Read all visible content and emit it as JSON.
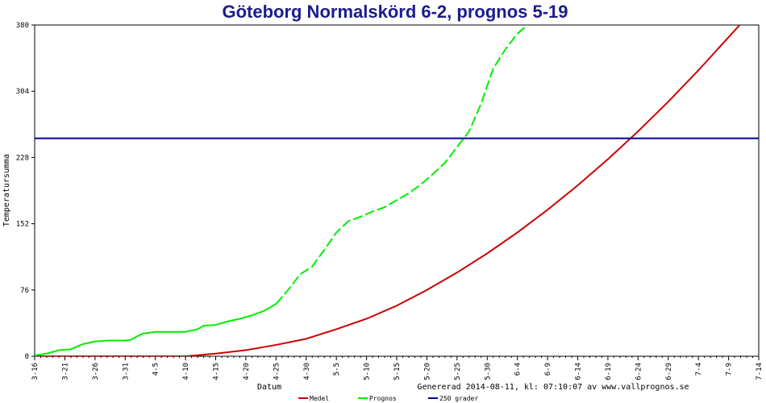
{
  "chart_data": {
    "type": "line",
    "title": "Göteborg Normalskörd 6-2, prognos 5-19",
    "xlabel": "Datum",
    "ylabel": "Temperatursumma",
    "footer": "Genererad 2014-08-11, kl: 07:10:07 av www.vallprognos.se",
    "x_tick_labels": [
      "3-16",
      "3-21",
      "3-26",
      "3-31",
      "4-5",
      "4-10",
      "4-15",
      "4-20",
      "4-25",
      "4-30",
      "5-5",
      "5-10",
      "5-15",
      "5-20",
      "5-25",
      "5-30",
      "6-4",
      "6-9",
      "6-14",
      "6-19",
      "6-24",
      "6-29",
      "7-4",
      "7-9",
      "7-14"
    ],
    "x_start_label": "3-16",
    "x_step_days": 5,
    "y_ticks": [
      0,
      76,
      152,
      228,
      304,
      380
    ],
    "ylim": [
      0,
      380
    ],
    "xlim_days": [
      0,
      120
    ],
    "grid": false,
    "legend_position": "bottom",
    "series": [
      {
        "name": "Medel",
        "color": "#cc0000",
        "points": [
          [
            0,
            0
          ],
          [
            15,
            0
          ],
          [
            25,
            0
          ],
          [
            30,
            3
          ],
          [
            35,
            7
          ],
          [
            40,
            13
          ],
          [
            45,
            20
          ],
          [
            50,
            31
          ],
          [
            55,
            43
          ],
          [
            60,
            58
          ],
          [
            65,
            76
          ],
          [
            70,
            96
          ],
          [
            75,
            118
          ],
          [
            80,
            142
          ],
          [
            85,
            168
          ],
          [
            90,
            196
          ],
          [
            95,
            226
          ],
          [
            100,
            258
          ],
          [
            105,
            292
          ],
          [
            110,
            328
          ],
          [
            115,
            366
          ],
          [
            120,
            404
          ]
        ]
      },
      {
        "name": "Prognos",
        "color": "#00ee00",
        "observed_until_day": 40,
        "points": [
          [
            0,
            1
          ],
          [
            2,
            3
          ],
          [
            4,
            7
          ],
          [
            6,
            8
          ],
          [
            8,
            14
          ],
          [
            10,
            17
          ],
          [
            12,
            18
          ],
          [
            15,
            18
          ],
          [
            16,
            19
          ],
          [
            17,
            23
          ],
          [
            18,
            26
          ],
          [
            20,
            28
          ],
          [
            25,
            28
          ],
          [
            27,
            31
          ],
          [
            28,
            35
          ],
          [
            30,
            36
          ],
          [
            32,
            40
          ],
          [
            34,
            43
          ],
          [
            36,
            47
          ],
          [
            38,
            52
          ],
          [
            40,
            60
          ],
          [
            42,
            76
          ],
          [
            44,
            94
          ],
          [
            46,
            103
          ],
          [
            48,
            122
          ],
          [
            50,
            142
          ],
          [
            52,
            155
          ],
          [
            54,
            160
          ],
          [
            56,
            166
          ],
          [
            58,
            171
          ],
          [
            60,
            179
          ],
          [
            62,
            187
          ],
          [
            64,
            197
          ],
          [
            66,
            209
          ],
          [
            68,
            222
          ],
          [
            70,
            240
          ],
          [
            72,
            258
          ],
          [
            74,
            290
          ],
          [
            76,
            330
          ],
          [
            78,
            352
          ],
          [
            80,
            370
          ],
          [
            82,
            382
          ],
          [
            83,
            400
          ]
        ]
      },
      {
        "name": "250 grader",
        "color": "#000099",
        "points": [
          [
            0,
            250
          ],
          [
            120,
            250
          ]
        ]
      }
    ]
  }
}
